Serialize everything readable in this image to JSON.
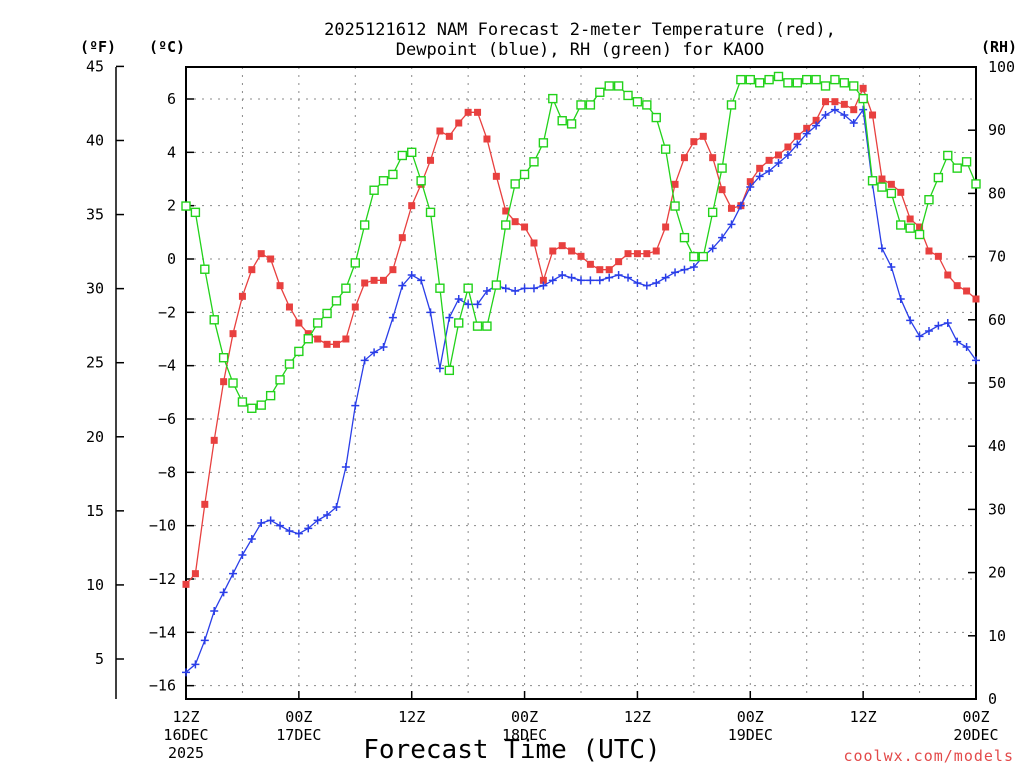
{
  "chart_data": {
    "type": "line",
    "title_lines": [
      "2025121612 NAM Forecast 2-meter Temperature (red),",
      "Dewpoint (blue), RH (green) for KAOO"
    ],
    "xlabel": "Forecast Time (UTC)",
    "credit": "coolwx.com/models",
    "unit_labels": {
      "fahrenheit": "(ºF)",
      "celsius": "(ºC)",
      "rh": "(RH)"
    },
    "x_hours_range": [
      0,
      84
    ],
    "x_ticks": [
      {
        "hour": 0,
        "lines": [
          "12Z",
          "16DEC",
          "2025"
        ]
      },
      {
        "hour": 12,
        "lines": [
          "00Z",
          "17DEC"
        ]
      },
      {
        "hour": 24,
        "lines": [
          "12Z"
        ]
      },
      {
        "hour": 36,
        "lines": [
          "00Z",
          "18DEC"
        ]
      },
      {
        "hour": 48,
        "lines": [
          "12Z"
        ]
      },
      {
        "hour": 60,
        "lines": [
          "00Z",
          "19DEC"
        ]
      },
      {
        "hour": 72,
        "lines": [
          "12Z"
        ]
      },
      {
        "hour": 84,
        "lines": [
          "00Z",
          "20DEC"
        ]
      }
    ],
    "celsius_range": [
      -16.5,
      7.2
    ],
    "celsius_ticks": [
      "6",
      "4",
      "2",
      "0",
      "−2",
      "−4",
      "−6",
      "−8",
      "−10",
      "−12",
      "−14",
      "−16"
    ],
    "celsius_tick_values": [
      6,
      4,
      2,
      0,
      -2,
      -4,
      -6,
      -8,
      -10,
      -12,
      -14,
      -16
    ],
    "fahrenheit_ticks": [
      "45",
      "40",
      "35",
      "30",
      "25",
      "20",
      "15",
      "10",
      "5"
    ],
    "fahrenheit_tick_values": [
      45,
      40,
      35,
      30,
      25,
      20,
      15,
      10,
      5
    ],
    "rh_range": [
      0,
      100
    ],
    "rh_ticks": [
      "100",
      "90",
      "80",
      "70",
      "60",
      "50",
      "40",
      "30",
      "20",
      "10",
      "0"
    ],
    "rh_tick_values": [
      100,
      90,
      80,
      70,
      60,
      50,
      40,
      30,
      20,
      10,
      0
    ],
    "grid": true,
    "series": [
      {
        "name": "Temperature (°C)",
        "color": "#e8403f",
        "axis": "celsius",
        "marker": "square-filled",
        "values": [
          -12.2,
          -11.8,
          -9.2,
          -6.8,
          -4.6,
          -2.8,
          -1.4,
          -0.4,
          0.2,
          0.0,
          -1.0,
          -1.8,
          -2.4,
          -2.8,
          -3.0,
          -3.2,
          -3.2,
          -3.0,
          -1.8,
          -0.9,
          -0.8,
          -0.8,
          -0.4,
          0.8,
          2.0,
          2.8,
          3.7,
          4.8,
          4.6,
          5.1,
          5.5,
          5.5,
          4.5,
          3.1,
          1.8,
          1.4,
          1.2,
          0.6,
          -0.8,
          0.3,
          0.5,
          0.3,
          0.1,
          -0.2,
          -0.4,
          -0.4,
          -0.1,
          0.2,
          0.2,
          0.2,
          0.3,
          1.2,
          2.8,
          3.8,
          4.4,
          4.6,
          3.8,
          2.6,
          1.9,
          2.0,
          2.9,
          3.4,
          3.7,
          3.9,
          4.2,
          4.6,
          4.9,
          5.2,
          5.9,
          5.9,
          5.8,
          5.6,
          6.4,
          5.4,
          3.0,
          2.8,
          2.5,
          1.5,
          1.2,
          0.3,
          0.1,
          -0.6,
          -1.0,
          -1.2,
          -1.5
        ]
      },
      {
        "name": "Dewpoint (°C)",
        "color": "#2a3ee8",
        "axis": "celsius",
        "marker": "plus",
        "values": [
          -15.5,
          -15.2,
          -14.3,
          -13.2,
          -12.5,
          -11.8,
          -11.1,
          -10.5,
          -9.9,
          -9.8,
          -10.0,
          -10.2,
          -10.3,
          -10.1,
          -9.8,
          -9.6,
          -9.3,
          -7.8,
          -5.5,
          -3.8,
          -3.5,
          -3.3,
          -2.2,
          -1.0,
          -0.6,
          -0.8,
          -2.0,
          -4.1,
          -2.2,
          -1.5,
          -1.7,
          -1.7,
          -1.2,
          -1.0,
          -1.1,
          -1.2,
          -1.1,
          -1.1,
          -1.0,
          -0.8,
          -0.6,
          -0.7,
          -0.8,
          -0.8,
          -0.8,
          -0.7,
          -0.6,
          -0.7,
          -0.9,
          -1.0,
          -0.9,
          -0.7,
          -0.5,
          -0.4,
          -0.3,
          0.1,
          0.4,
          0.8,
          1.3,
          2.0,
          2.7,
          3.1,
          3.3,
          3.6,
          3.9,
          4.3,
          4.7,
          5.0,
          5.4,
          5.6,
          5.4,
          5.1,
          5.6,
          2.8,
          0.4,
          -0.3,
          -1.5,
          -2.3,
          -2.9,
          -2.7,
          -2.5,
          -2.4,
          -3.1,
          -3.3,
          -3.8
        ]
      },
      {
        "name": "RH (%)",
        "color": "#22d21a",
        "axis": "rh",
        "marker": "square-open",
        "values": [
          78,
          77,
          68,
          60,
          54,
          50,
          47,
          46,
          46.5,
          48,
          50.5,
          53,
          55,
          57,
          59.5,
          61,
          63,
          65,
          69,
          75,
          80.5,
          82,
          83,
          86,
          86.5,
          82,
          77,
          65,
          52,
          59.5,
          65,
          59,
          59,
          65.5,
          75,
          81.5,
          83,
          85,
          88,
          95,
          91.5,
          91,
          94,
          94,
          96,
          97,
          97,
          95.5,
          94.5,
          94,
          92,
          87,
          78,
          73,
          70,
          70,
          77,
          84,
          94,
          98,
          98,
          97.5,
          98,
          98.5,
          97.5,
          97.5,
          98,
          98,
          97,
          98,
          97.5,
          97,
          95,
          82,
          81,
          80,
          75,
          74.5,
          73.5,
          79,
          82.5,
          86,
          84,
          85,
          81.5
        ]
      }
    ]
  }
}
